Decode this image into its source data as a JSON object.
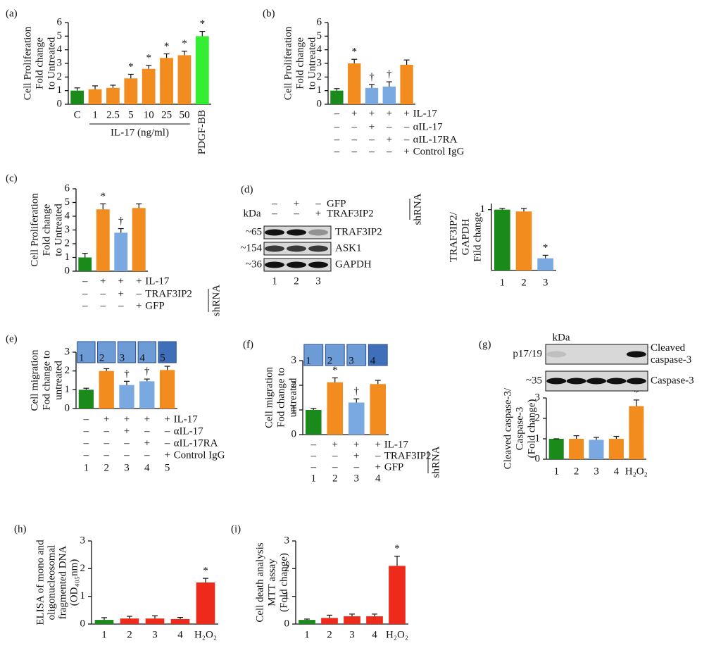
{
  "chart_data": [
    {
      "type": "bar",
      "panel": "(a)",
      "ylabel": [
        "Cell Proliferation",
        "Fold change",
        "to Untreated"
      ],
      "categories": [
        "C",
        "1",
        "2.5",
        "5",
        "10",
        "25",
        "50",
        "PDGF-BB"
      ],
      "xlabel": "IL-17 (ng/ml)",
      "values": [
        1.0,
        1.1,
        1.2,
        1.9,
        2.6,
        3.4,
        3.6,
        5.0
      ],
      "errors": [
        0.2,
        0.25,
        0.2,
        0.3,
        0.25,
        0.3,
        0.3,
        0.35
      ],
      "colors": [
        "#1a8a1a",
        "#f28c1e",
        "#f28c1e",
        "#f28c1e",
        "#f28c1e",
        "#f28c1e",
        "#f28c1e",
        "#33ee33"
      ],
      "markers": [
        null,
        null,
        null,
        "*",
        "*",
        "*",
        "*",
        "*"
      ],
      "ylim": [
        0,
        6
      ],
      "yticks": [
        0,
        1,
        2,
        3,
        4,
        5,
        6
      ]
    },
    {
      "type": "bar",
      "panel": "(b)",
      "ylabel": [
        "Cell Proliferation",
        "Fold change",
        "to Untreated"
      ],
      "values": [
        1.0,
        3.0,
        1.2,
        1.3,
        2.9
      ],
      "errors": [
        0.15,
        0.3,
        0.25,
        0.35,
        0.35
      ],
      "colors": [
        "#1a8a1a",
        "#f28c1e",
        "#79a9e0",
        "#79a9e0",
        "#f28c1e"
      ],
      "markers": [
        null,
        "*",
        "†",
        "†",
        null
      ],
      "treatments": [
        {
          "label": "IL-17",
          "signs": [
            "–",
            "+",
            "+",
            "+",
            "+"
          ]
        },
        {
          "label": "αIL-17",
          "signs": [
            "–",
            "–",
            "+",
            "–",
            "–"
          ]
        },
        {
          "label": "αIL-17RA",
          "signs": [
            "–",
            "–",
            "–",
            "+",
            "–"
          ]
        },
        {
          "label": "Control IgG",
          "signs": [
            "–",
            "–",
            "–",
            "–",
            "+"
          ]
        }
      ],
      "ylim": [
        0,
        6
      ],
      "yticks": [
        0,
        1,
        2,
        3,
        4,
        5,
        6
      ]
    },
    {
      "type": "bar",
      "panel": "(c)",
      "ylabel": [
        "Cell Proliferation",
        "Fold change",
        "to Untreated"
      ],
      "values": [
        1.0,
        4.5,
        2.8,
        4.6
      ],
      "errors": [
        0.3,
        0.4,
        0.3,
        0.3
      ],
      "colors": [
        "#1a8a1a",
        "#f28c1e",
        "#79a9e0",
        "#f28c1e"
      ],
      "markers": [
        null,
        "*",
        "†",
        null
      ],
      "treatments": [
        {
          "label": "IL-17",
          "signs": [
            "–",
            "+",
            "+",
            "+"
          ]
        },
        {
          "label": "TRAF3IP2",
          "signs": [
            "–",
            "–",
            "+",
            "–"
          ]
        },
        {
          "label": "GFP",
          "signs": [
            "–",
            "–",
            "–",
            "+"
          ]
        }
      ],
      "treatment_group": "shRNA",
      "ylim": [
        0,
        6
      ],
      "yticks": [
        0,
        1,
        2,
        3,
        4,
        5,
        6
      ]
    },
    {
      "type": "bar",
      "panel": "(d)",
      "ylabel": [
        "TRAF3IP2/",
        "GAPDH",
        "Fild change"
      ],
      "categories": [
        "1",
        "2",
        "3"
      ],
      "values": [
        1.0,
        0.97,
        0.2
      ],
      "errors": [
        0.02,
        0.05,
        0.05
      ],
      "colors": [
        "#1a8a1a",
        "#f28c1e",
        "#79a9e0"
      ],
      "markers": [
        null,
        null,
        "*"
      ],
      "ylim": [
        0,
        1.1
      ],
      "yticks": [
        1
      ],
      "blot": {
        "unit": "kDa",
        "group": "shRNA",
        "header": [
          {
            "label": "GFP",
            "signs": [
              "–",
              "+",
              "–"
            ]
          },
          {
            "label": "TRAF3IP2",
            "signs": [
              "–",
              "–",
              "+"
            ]
          }
        ],
        "rows": [
          {
            "size": "~65",
            "protein": [
              "TRAF3IP2"
            ]
          },
          {
            "size": "~154",
            "protein": [
              "ASK1"
            ]
          },
          {
            "size": "~36",
            "protein": [
              "GAPDH"
            ]
          }
        ],
        "lanes": [
          "1",
          "2",
          "3"
        ]
      }
    },
    {
      "type": "bar",
      "panel": "(e)",
      "ylabel": [
        "Cell migration",
        "Fod change to",
        "untreated"
      ],
      "categories": [
        "1",
        "2",
        "3",
        "4",
        "5"
      ],
      "values": [
        1.0,
        2.0,
        1.25,
        1.45,
        2.05
      ],
      "errors": [
        0.08,
        0.12,
        0.2,
        0.12,
        0.2
      ],
      "colors": [
        "#1a8a1a",
        "#f28c1e",
        "#79a9e0",
        "#79a9e0",
        "#f28c1e"
      ],
      "markers": [
        null,
        "*",
        "†",
        "†",
        null
      ],
      "treatments": [
        {
          "label": "IL-17",
          "signs": [
            "–",
            "+",
            "+",
            "+",
            "+"
          ]
        },
        {
          "label": "αIL-17",
          "signs": [
            "–",
            "–",
            "+",
            "–",
            "–"
          ]
        },
        {
          "label": "αIL-17RA",
          "signs": [
            "–",
            "–",
            "–",
            "+",
            "–"
          ]
        },
        {
          "label": "Control IgG",
          "signs": [
            "–",
            "–",
            "–",
            "–",
            "+"
          ]
        }
      ],
      "ylim": [
        0,
        3
      ],
      "yticks": [
        0,
        1,
        2,
        3
      ]
    },
    {
      "type": "bar",
      "panel": "(f)",
      "ylabel": [
        "Cell migration",
        "Fod change to",
        "untreated"
      ],
      "categories": [
        "1",
        "2",
        "3",
        "4"
      ],
      "values": [
        1.0,
        2.12,
        1.3,
        2.05
      ],
      "errors": [
        0.06,
        0.18,
        0.15,
        0.15
      ],
      "colors": [
        "#1a8a1a",
        "#f28c1e",
        "#79a9e0",
        "#f28c1e"
      ],
      "markers": [
        null,
        "*",
        "†",
        null
      ],
      "treatments": [
        {
          "label": "IL-17",
          "signs": [
            "–",
            "+",
            "+",
            "+"
          ]
        },
        {
          "label": "TRAF3IP2",
          "signs": [
            "–",
            "–",
            "+",
            "–"
          ]
        },
        {
          "label": "GFP",
          "signs": [
            "–",
            "–",
            "–",
            "+"
          ]
        }
      ],
      "treatment_group": "shRNA",
      "ylim": [
        0,
        3
      ],
      "yticks": [
        0,
        1,
        2,
        3
      ]
    },
    {
      "type": "bar",
      "panel": "(g)",
      "ylabel": [
        "Cleaved caspase-3/",
        "Caspase-3",
        "(Fold change)"
      ],
      "categories": [
        "1",
        "2",
        "3",
        "4",
        "H₂O₂"
      ],
      "values": [
        1.0,
        1.0,
        0.95,
        1.0,
        2.6
      ],
      "errors": [
        0.0,
        0.15,
        0.12,
        0.12,
        0.3
      ],
      "colors": [
        "#1a8a1a",
        "#f28c1e",
        "#79a9e0",
        "#f28c1e",
        "#f28c1e"
      ],
      "markers": [
        null,
        null,
        null,
        null,
        "*"
      ],
      "ylim": [
        0,
        3
      ],
      "yticks": [
        0,
        1,
        2,
        3
      ],
      "blot": {
        "unit": "kDa",
        "rows": [
          {
            "size": "p17/19",
            "protein": [
              "Cleaved",
              "caspase-3"
            ]
          },
          {
            "size": "~35",
            "protein": [
              "Caspase-3"
            ]
          }
        ]
      }
    },
    {
      "type": "bar",
      "panel": "(h)",
      "ylabel": [
        "ELISA of mono and",
        "oligonucleosomal",
        "fragmented DNA",
        "(OD₄₀₅nm)"
      ],
      "categories": [
        "1",
        "2",
        "3",
        "4",
        "H₂O₂"
      ],
      "values": [
        0.15,
        0.2,
        0.2,
        0.18,
        1.5
      ],
      "errors": [
        0.08,
        0.08,
        0.1,
        0.06,
        0.15
      ],
      "colors": [
        "#1a8a1a",
        "#ee2a1a",
        "#ee2a1a",
        "#ee2a1a",
        "#ee2a1a"
      ],
      "markers": [
        null,
        null,
        null,
        null,
        "*"
      ],
      "ylim": [
        0,
        3
      ],
      "yticks": [
        0,
        1,
        2,
        3
      ]
    },
    {
      "type": "bar",
      "panel": "(i)",
      "ylabel": [
        "Cell death analysis",
        "MTT assay",
        "(Fold change)"
      ],
      "categories": [
        "1",
        "2",
        "3",
        "4",
        "H₂O₂"
      ],
      "values": [
        0.15,
        0.22,
        0.28,
        0.28,
        2.1
      ],
      "errors": [
        0.03,
        0.1,
        0.08,
        0.08,
        0.35
      ],
      "colors": [
        "#1a8a1a",
        "#ee2a1a",
        "#ee2a1a",
        "#ee2a1a",
        "#ee2a1a"
      ],
      "markers": [
        null,
        null,
        null,
        null,
        "*"
      ],
      "ylim": [
        0,
        3
      ],
      "yticks": [
        0,
        1,
        2,
        3
      ]
    }
  ]
}
